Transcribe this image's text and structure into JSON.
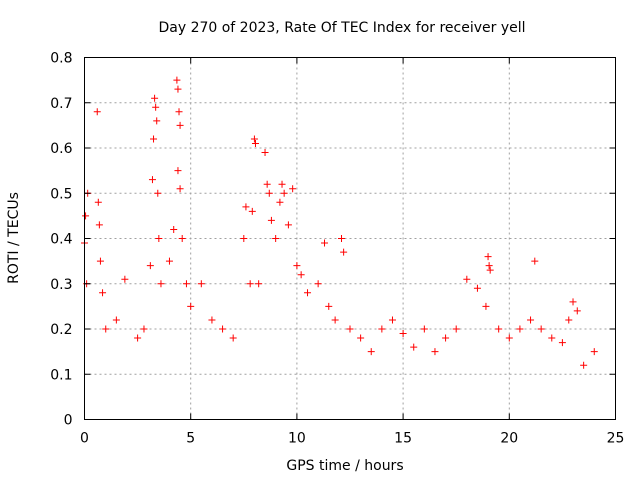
{
  "chart_data": {
    "type": "scatter",
    "title": "Day 270 of 2023, Rate Of TEC Index for receiver yell",
    "xlabel": "GPS time / hours",
    "ylabel": "ROTI / TECUs",
    "xlim": [
      0,
      25
    ],
    "ylim": [
      0,
      0.8
    ],
    "grid": true,
    "x_ticks": [
      0,
      5,
      10,
      15,
      20,
      25
    ],
    "x_tick_labels": [
      "0",
      "5",
      "10",
      "15",
      "20",
      "25"
    ],
    "y_ticks": [
      0,
      0.1,
      0.2,
      0.3,
      0.4,
      0.5,
      0.6,
      0.7,
      0.8
    ],
    "y_tick_labels": [
      "0",
      "0.1",
      "0.2",
      "0.3",
      "0.4",
      "0.5",
      "0.6",
      "0.7",
      "0.8"
    ],
    "marker": "+",
    "marker_color": "#ff0000",
    "series": [
      {
        "name": "ROTI",
        "points": [
          [
            0.0,
            0.39
          ],
          [
            0.05,
            0.45
          ],
          [
            0.1,
            0.3
          ],
          [
            0.15,
            0.5
          ],
          [
            0.6,
            0.68
          ],
          [
            0.65,
            0.48
          ],
          [
            0.7,
            0.43
          ],
          [
            0.75,
            0.35
          ],
          [
            0.85,
            0.28
          ],
          [
            1.0,
            0.2
          ],
          [
            1.5,
            0.22
          ],
          [
            1.9,
            0.31
          ],
          [
            2.5,
            0.18
          ],
          [
            2.8,
            0.2
          ],
          [
            3.1,
            0.34
          ],
          [
            3.2,
            0.53
          ],
          [
            3.25,
            0.62
          ],
          [
            3.3,
            0.71
          ],
          [
            3.35,
            0.69
          ],
          [
            3.4,
            0.66
          ],
          [
            3.45,
            0.5
          ],
          [
            3.5,
            0.4
          ],
          [
            3.6,
            0.3
          ],
          [
            4.0,
            0.35
          ],
          [
            4.2,
            0.42
          ],
          [
            4.35,
            0.75
          ],
          [
            4.4,
            0.73
          ],
          [
            4.45,
            0.68
          ],
          [
            4.5,
            0.65
          ],
          [
            4.4,
            0.55
          ],
          [
            4.5,
            0.51
          ],
          [
            4.6,
            0.4
          ],
          [
            4.8,
            0.3
          ],
          [
            5.0,
            0.25
          ],
          [
            5.5,
            0.3
          ],
          [
            6.0,
            0.22
          ],
          [
            6.5,
            0.2
          ],
          [
            7.0,
            0.18
          ],
          [
            7.5,
            0.4
          ],
          [
            7.6,
            0.47
          ],
          [
            7.8,
            0.3
          ],
          [
            7.9,
            0.46
          ],
          [
            8.0,
            0.62
          ],
          [
            8.05,
            0.61
          ],
          [
            8.2,
            0.3
          ],
          [
            8.5,
            0.59
          ],
          [
            8.6,
            0.52
          ],
          [
            8.7,
            0.5
          ],
          [
            8.8,
            0.44
          ],
          [
            9.0,
            0.4
          ],
          [
            9.2,
            0.48
          ],
          [
            9.3,
            0.52
          ],
          [
            9.4,
            0.5
          ],
          [
            9.6,
            0.43
          ],
          [
            9.8,
            0.51
          ],
          [
            10.0,
            0.34
          ],
          [
            10.2,
            0.32
          ],
          [
            10.5,
            0.28
          ],
          [
            11.0,
            0.3
          ],
          [
            11.3,
            0.39
          ],
          [
            11.5,
            0.25
          ],
          [
            11.8,
            0.22
          ],
          [
            12.1,
            0.4
          ],
          [
            12.2,
            0.37
          ],
          [
            12.5,
            0.2
          ],
          [
            13.0,
            0.18
          ],
          [
            13.5,
            0.15
          ],
          [
            14.0,
            0.2
          ],
          [
            14.5,
            0.22
          ],
          [
            15.0,
            0.19
          ],
          [
            15.5,
            0.16
          ],
          [
            16.0,
            0.2
          ],
          [
            16.5,
            0.15
          ],
          [
            17.0,
            0.18
          ],
          [
            17.5,
            0.2
          ],
          [
            18.0,
            0.31
          ],
          [
            18.5,
            0.29
          ],
          [
            18.9,
            0.25
          ],
          [
            19.0,
            0.36
          ],
          [
            19.05,
            0.34
          ],
          [
            19.1,
            0.33
          ],
          [
            19.5,
            0.2
          ],
          [
            20.0,
            0.18
          ],
          [
            20.5,
            0.2
          ],
          [
            21.0,
            0.22
          ],
          [
            21.2,
            0.35
          ],
          [
            21.5,
            0.2
          ],
          [
            22.0,
            0.18
          ],
          [
            22.5,
            0.17
          ],
          [
            22.8,
            0.22
          ],
          [
            23.0,
            0.26
          ],
          [
            23.2,
            0.24
          ],
          [
            23.5,
            0.12
          ],
          [
            24.0,
            0.15
          ]
        ]
      }
    ]
  }
}
